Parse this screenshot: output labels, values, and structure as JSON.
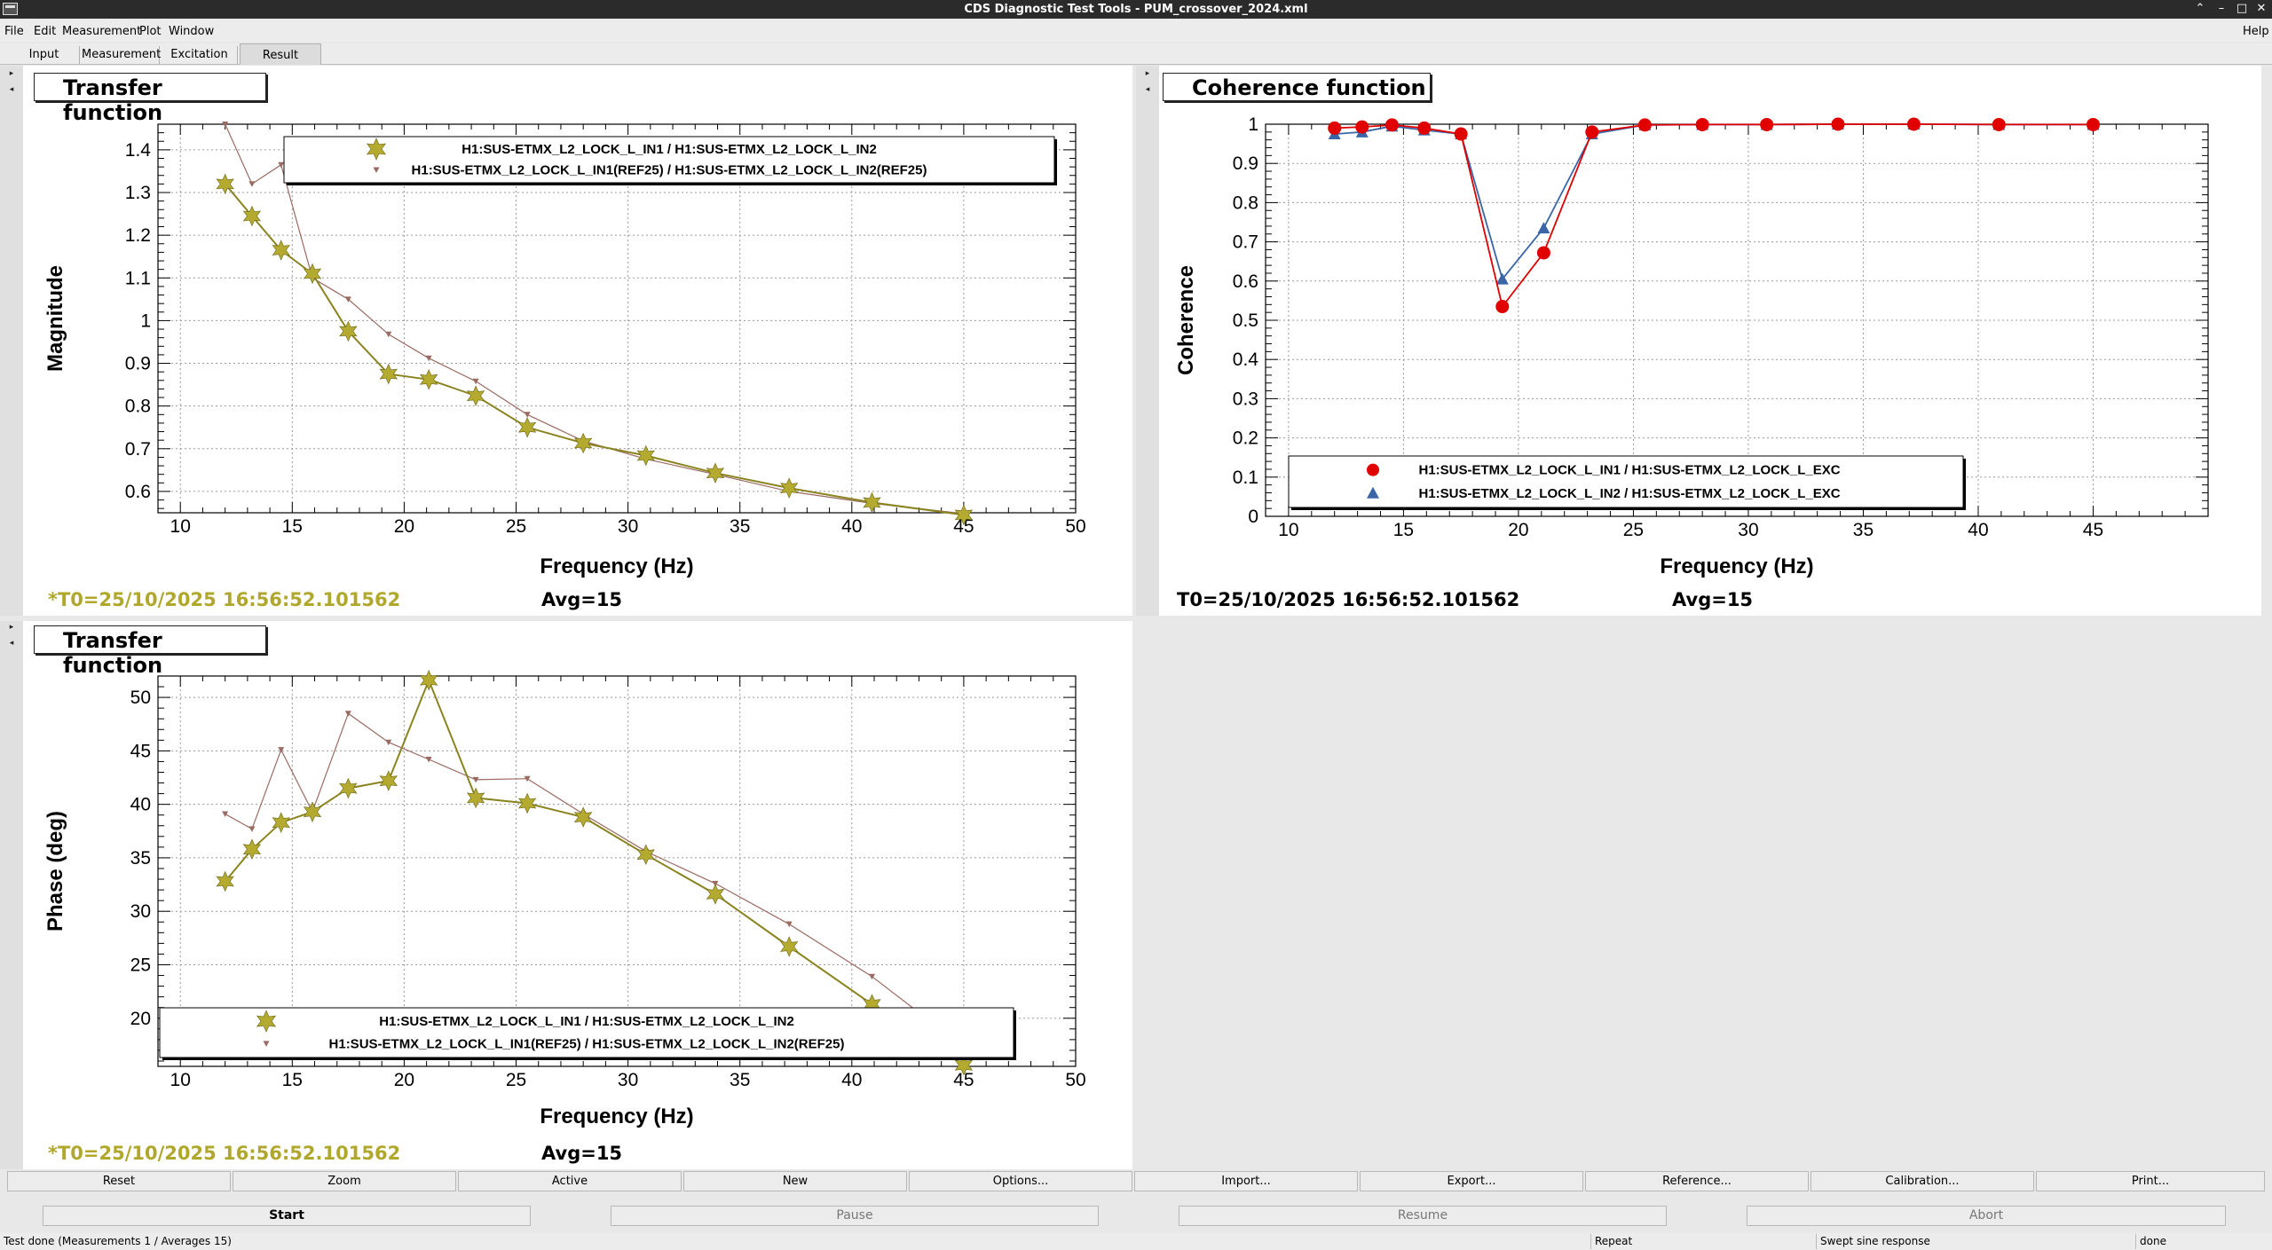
{
  "window": {
    "title": "CDS Diagnostic Test Tools - PUM_crossover_2024.xml"
  },
  "menu": {
    "file": "File",
    "edit": "Edit",
    "measurement": "Measurement",
    "plot": "Plot",
    "window": "Window",
    "help": "Help"
  },
  "tabs": [
    "Input",
    "Measurement",
    "Excitation",
    "Result"
  ],
  "active_tab": "Result",
  "panels": {
    "mag": {
      "title": "Transfer function",
      "t0": "*T0=25/10/2025 16:56:52.101562",
      "avg": "Avg=15"
    },
    "coh": {
      "title": "Coherence function",
      "t0": "T0=25/10/2025 16:56:52.101562",
      "avg": "Avg=15"
    },
    "phase": {
      "title": "Transfer function",
      "t0": "*T0=25/10/2025 16:56:52.101562",
      "avg": "Avg=15"
    }
  },
  "colors": {
    "olive": "#b3aa2f",
    "olive_dark": "#8a8420",
    "brown": "#9a6b62",
    "red": "#e00000",
    "blue": "#3a66a8",
    "t0_text": "#b0a82c"
  },
  "chart_data": [
    {
      "type": "line",
      "title": "Transfer function",
      "xlabel": "Frequency (Hz)",
      "ylabel": "Magnitude",
      "xlim": [
        9,
        50
      ],
      "ylim": [
        0.55,
        1.46
      ],
      "xticks": [
        10,
        15,
        20,
        25,
        30,
        35,
        40,
        45,
        50
      ],
      "yticks": [
        0.6,
        0.7,
        0.8,
        0.9,
        1,
        1.1,
        1.2,
        1.3,
        1.4
      ],
      "grid": true,
      "legend_position": "top-right",
      "series": [
        {
          "name": "H1:SUS-ETMX_L2_LOCK_L_IN1 / H1:SUS-ETMX_L2_LOCK_L_IN2",
          "marker": "star",
          "x": [
            12,
            13.2,
            14.5,
            15.9,
            17.5,
            19.3,
            21.1,
            23.2,
            25.5,
            28,
            30.8,
            33.9,
            37.2,
            40.9,
            45
          ],
          "y": [
            1.32,
            1.245,
            1.165,
            1.11,
            0.975,
            0.875,
            0.862,
            0.824,
            0.75,
            0.713,
            0.684,
            0.643,
            0.608,
            0.574,
            0.545
          ]
        },
        {
          "name": "H1:SUS-ETMX_L2_LOCK_L_IN1(REF25) / H1:SUS-ETMX_L2_LOCK_L_IN2(REF25)",
          "marker": "triangle-down",
          "x": [
            12,
            13.2,
            14.5,
            15.9,
            17.5,
            19.3,
            21.1,
            23.2,
            25.5,
            28,
            30.8,
            33.9,
            37.2,
            40.9,
            45
          ],
          "y": [
            1.46,
            1.32,
            1.365,
            1.1,
            1.05,
            0.968,
            0.912,
            0.858,
            0.78,
            0.718,
            0.676,
            0.64,
            0.6,
            0.572,
            0.548
          ]
        }
      ]
    },
    {
      "type": "line",
      "title": "Coherence function",
      "xlabel": "Frequency (Hz)",
      "ylabel": "Coherence",
      "xlim": [
        9,
        50
      ],
      "ylim": [
        0,
        1
      ],
      "xticks": [
        10,
        15,
        20,
        25,
        30,
        35,
        40,
        45
      ],
      "yticks": [
        0,
        0.1,
        0.2,
        0.3,
        0.4,
        0.5,
        0.6,
        0.7,
        0.8,
        0.9,
        1
      ],
      "grid": true,
      "legend_position": "bottom-center",
      "series": [
        {
          "name": "H1:SUS-ETMX_L2_LOCK_L_IN1 / H1:SUS-ETMX_L2_LOCK_L_EXC",
          "marker": "circle",
          "x": [
            12,
            13.2,
            14.5,
            15.9,
            17.5,
            19.3,
            21.1,
            23.2,
            25.5,
            28,
            30.8,
            33.9,
            37.2,
            40.9,
            45
          ],
          "y": [
            0.99,
            0.993,
            0.998,
            0.99,
            0.975,
            0.535,
            0.672,
            0.98,
            0.998,
            0.999,
            0.999,
            1,
            1,
            0.999,
            0.999
          ]
        },
        {
          "name": "H1:SUS-ETMX_L2_LOCK_L_IN2 / H1:SUS-ETMX_L2_LOCK_L_EXC",
          "marker": "triangle-up",
          "x": [
            12,
            13.2,
            14.5,
            15.9,
            17.5,
            19.3,
            21.1,
            23.2,
            25.5,
            28,
            30.8,
            33.9,
            37.2,
            40.9,
            45
          ],
          "y": [
            0.975,
            0.98,
            0.995,
            0.985,
            0.975,
            0.605,
            0.735,
            0.975,
            0.998,
            0.999,
            0.999,
            1,
            1,
            0.999,
            0.999
          ]
        }
      ]
    },
    {
      "type": "line",
      "title": "Transfer function",
      "xlabel": "Frequency (Hz)",
      "ylabel": "Phase (deg)",
      "xlim": [
        9,
        50
      ],
      "ylim": [
        15.5,
        52
      ],
      "xticks": [
        10,
        15,
        20,
        25,
        30,
        35,
        40,
        45,
        50
      ],
      "yticks": [
        20,
        25,
        30,
        35,
        40,
        45,
        50
      ],
      "grid": true,
      "legend_position": "bottom-center",
      "series": [
        {
          "name": "H1:SUS-ETMX_L2_LOCK_L_IN1 / H1:SUS-ETMX_L2_LOCK_L_IN2",
          "marker": "star",
          "x": [
            12,
            13.2,
            14.5,
            15.9,
            17.5,
            19.3,
            21.1,
            23.2,
            25.5,
            28,
            30.8,
            33.9,
            37.2,
            40.9,
            45
          ],
          "y": [
            32.8,
            35.8,
            38.3,
            39.3,
            41.5,
            42.2,
            51.6,
            40.6,
            40.1,
            38.8,
            35.3,
            31.6,
            26.7,
            21.3,
            15.6
          ]
        },
        {
          "name": "H1:SUS-ETMX_L2_LOCK_L_IN1(REF25) / H1:SUS-ETMX_L2_LOCK_L_IN2(REF25)",
          "marker": "triangle-down",
          "x": [
            12,
            13.2,
            14.5,
            15.9,
            17.5,
            19.3,
            21.1,
            23.2,
            25.5,
            28,
            30.8,
            33.9,
            37.2,
            40.9,
            45
          ],
          "y": [
            39.1,
            37.7,
            45.1,
            39.3,
            48.5,
            45.8,
            44.2,
            42.3,
            42.4,
            39.1,
            35.6,
            32.6,
            28.8,
            23.9,
            17.3
          ]
        }
      ]
    }
  ],
  "buttons": {
    "reset": "Reset",
    "zoom": "Zoom",
    "active": "Active",
    "new": "New",
    "options": "Options...",
    "import": "Import...",
    "export": "Export...",
    "reference": "Reference...",
    "calibration": "Calibration...",
    "print": "Print..."
  },
  "control_buttons": {
    "start": "Start",
    "pause": "Pause",
    "resume": "Resume",
    "abort": "Abort"
  },
  "status": {
    "message": "Test done (Measurements 1 / Averages 15)",
    "repeat": "Repeat",
    "type": "Swept sine response",
    "state": "done"
  }
}
